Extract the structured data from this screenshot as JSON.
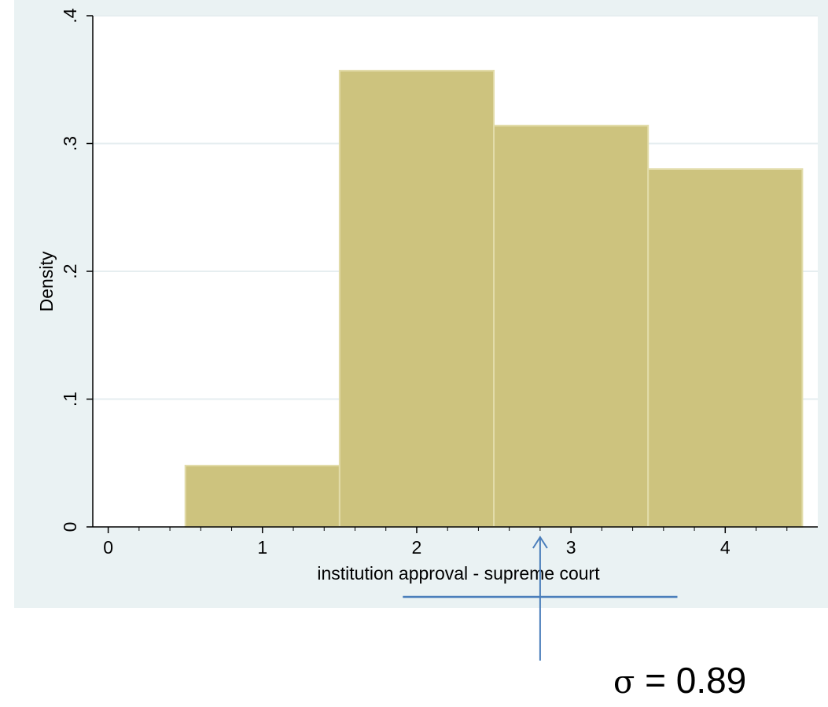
{
  "chart_data": {
    "type": "bar",
    "subtype": "histogram",
    "title": "",
    "xlabel": "institution approval - supreme court",
    "ylabel": "Density",
    "x_ticks": [
      0,
      1,
      2,
      3,
      4
    ],
    "x_tick_labels": [
      "0",
      "1",
      "2",
      "3",
      "4"
    ],
    "y_ticks": [
      0,
      0.1,
      0.2,
      0.3,
      0.4
    ],
    "y_tick_labels": [
      "0",
      ".1",
      ".2",
      ".3",
      ".4"
    ],
    "xlim": [
      -0.1,
      4.6
    ],
    "ylim": [
      0,
      0.4
    ],
    "bins": [
      {
        "x0": 0.5,
        "x1": 1.5,
        "value": 0.048
      },
      {
        "x0": 1.5,
        "x1": 2.5,
        "value": 0.357
      },
      {
        "x0": 2.5,
        "x1": 3.5,
        "value": 0.314
      },
      {
        "x0": 3.5,
        "x1": 4.5,
        "value": 0.28
      }
    ],
    "grid": true,
    "bar_color": "#cdc37e",
    "bar_edge_color": "#e2dcaa",
    "background_color": "#eaf2f3",
    "plot_background_color": "#ffffff",
    "annotation_color": "#4a7ebb",
    "mean_marker_x": 2.8,
    "sd_span": [
      1.91,
      3.69
    ]
  },
  "annotation": {
    "sigma_symbol": "σ",
    "sigma_value": " = 0.89"
  }
}
